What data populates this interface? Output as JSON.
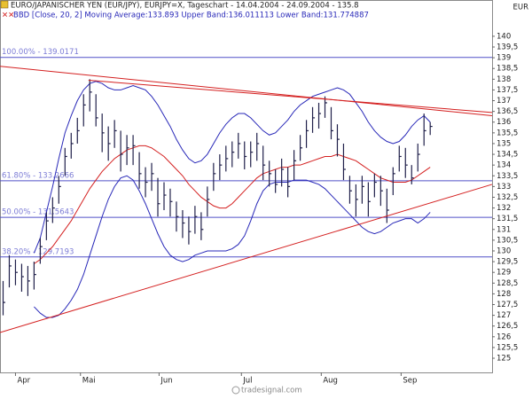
{
  "chart_data": {
    "type": "ohlc",
    "title": "EURO/JAPANISCHER YEN (EUR/JPY), EURJPY=X, Tageschart - 14.04.2004 - 24.09.2004 - 135.8",
    "subtitle": "BBD [Close, 20, 2] Moving Average:133.893 Upper Band:136.011113 Lower Band:131.774887",
    "currency": "EUR",
    "watermark": "tradesignal.com",
    "bar_color": "#20204a",
    "xlim": [
      -0.5,
      79
    ],
    "xticks": [
      {
        "value": 2,
        "label": "Apr"
      },
      {
        "value": 12.5,
        "label": "Mai"
      },
      {
        "value": 25.2,
        "label": "Jun"
      },
      {
        "value": 38.5,
        "label": "Jul"
      },
      {
        "value": 51.4,
        "label": "Aug"
      },
      {
        "value": 64.3,
        "label": "Sep"
      }
    ],
    "ylim": [
      124.34,
      141.69
    ],
    "yticks": [
      125,
      {
        "value": 125.5,
        "label": "125,5"
      },
      126,
      {
        "value": 126.5,
        "label": "126,5"
      },
      127,
      {
        "value": 127.5,
        "label": "127,5"
      },
      128,
      {
        "value": 128.5,
        "label": "128,5"
      },
      129,
      {
        "value": 129.5,
        "label": "129,5"
      },
      130,
      {
        "value": 130.5,
        "label": "130,5"
      },
      131,
      {
        "value": 131.5,
        "label": "131,5"
      },
      132,
      {
        "value": 132.5,
        "label": "132,5"
      },
      133,
      {
        "value": 133.5,
        "label": "133,5"
      },
      134,
      {
        "value": 134.5,
        "label": "134,5"
      },
      135,
      {
        "value": 135.5,
        "label": "135,5"
      },
      136,
      {
        "value": 136.5,
        "label": "136,5"
      },
      137,
      {
        "value": 137.5,
        "label": "137,5"
      },
      138,
      {
        "value": 138.5,
        "label": "138,5"
      },
      139,
      {
        "value": 139.5,
        "label": "139,5"
      },
      140
    ],
    "ohlc": {
      "high": [
        128.6,
        129.8,
        129.6,
        129.4,
        129.3,
        129.5,
        130.6,
        131.8,
        132.5,
        133.5,
        134.8,
        135.5,
        136.2,
        137.3,
        138.0,
        137.3,
        136.4,
        135.8,
        136.1,
        135.6,
        135.4,
        135.4,
        134.6,
        133.9,
        134.1,
        133.4,
        133.2,
        132.9,
        132.3,
        131.9,
        131.6,
        132.1,
        131.8,
        133.0,
        134.1,
        134.5,
        134.9,
        135.1,
        135.5,
        135.1,
        135.1,
        135.5,
        134.9,
        134.2,
        133.8,
        134.3,
        133.9,
        134.7,
        135.4,
        136.1,
        136.7,
        136.9,
        137.2,
        136.7,
        135.9,
        135.0,
        133.5,
        133.1,
        133.5,
        133.2,
        133.6,
        133.5,
        132.9,
        133.9,
        134.9,
        134.8,
        134.0,
        135.0,
        136.4,
        136.0
      ],
      "low": [
        127.0,
        128.3,
        128.4,
        128.1,
        127.9,
        128.2,
        129.4,
        130.5,
        131.3,
        132.2,
        133.5,
        134.3,
        135.0,
        135.8,
        136.5,
        135.8,
        134.6,
        134.2,
        134.8,
        133.7,
        134.0,
        134.0,
        132.9,
        132.5,
        132.8,
        131.6,
        131.9,
        131.6,
        130.9,
        130.6,
        130.3,
        130.8,
        130.5,
        131.6,
        132.8,
        133.3,
        133.7,
        133.9,
        134.3,
        133.8,
        133.9,
        134.2,
        133.3,
        133.0,
        132.7,
        133.0,
        132.5,
        133.3,
        134.2,
        134.8,
        135.5,
        135.7,
        136.2,
        135.2,
        134.4,
        133.3,
        132.2,
        131.6,
        132.2,
        131.6,
        132.5,
        132.1,
        131.3,
        132.6,
        133.7,
        133.4,
        133.1,
        133.7,
        134.9,
        135.4
      ],
      "close": [
        127.6,
        129.3,
        129.0,
        128.8,
        128.6,
        128.9,
        130.2,
        131.4,
        132.0,
        133.0,
        134.4,
        135.0,
        135.6,
        136.8,
        137.4,
        136.2,
        135.5,
        135.0,
        135.6,
        134.5,
        134.8,
        134.9,
        133.6,
        133.2,
        133.6,
        132.2,
        132.6,
        132.3,
        131.6,
        131.3,
        130.9,
        131.6,
        131.0,
        132.4,
        133.6,
        134.0,
        134.3,
        134.6,
        135.0,
        134.4,
        134.6,
        135.0,
        134.0,
        133.6,
        133.1,
        133.8,
        133.0,
        134.2,
        134.8,
        135.6,
        136.2,
        136.4,
        136.9,
        135.6,
        135.2,
        133.8,
        132.8,
        132.4,
        133.0,
        132.3,
        133.2,
        132.8,
        131.9,
        133.6,
        134.4,
        134.0,
        133.4,
        134.5,
        135.6,
        135.8
      ]
    },
    "series": [
      {
        "color": "#d42020",
        "values": [
          null,
          null,
          null,
          null,
          null,
          129.4,
          129.6,
          129.9,
          130.2,
          130.6,
          131.0,
          131.4,
          131.9,
          132.4,
          132.9,
          133.3,
          133.7,
          134.0,
          134.3,
          134.5,
          134.7,
          134.8,
          134.9,
          134.9,
          134.8,
          134.6,
          134.4,
          134.1,
          133.8,
          133.5,
          133.1,
          132.8,
          132.5,
          132.3,
          132.1,
          132.0,
          132.0,
          132.2,
          132.5,
          132.8,
          133.1,
          133.4,
          133.6,
          133.7,
          133.8,
          133.9,
          133.9,
          134.0,
          134.0,
          134.1,
          134.2,
          134.3,
          134.4,
          134.4,
          134.5,
          134.4,
          134.3,
          134.2,
          134.0,
          133.8,
          133.6,
          133.4,
          133.3,
          133.2,
          133.2,
          133.2,
          133.3,
          133.5,
          133.7,
          133.9
        ]
      },
      {
        "color": "#2828b8",
        "values": [
          null,
          null,
          null,
          null,
          null,
          129.9,
          130.6,
          131.8,
          133.0,
          134.3,
          135.5,
          136.3,
          137.0,
          137.5,
          137.8,
          137.9,
          137.8,
          137.6,
          137.5,
          137.5,
          137.6,
          137.7,
          137.6,
          137.5,
          137.2,
          136.8,
          136.3,
          135.8,
          135.2,
          134.7,
          134.3,
          134.1,
          134.2,
          134.5,
          135.0,
          135.5,
          135.9,
          136.2,
          136.4,
          136.4,
          136.2,
          135.9,
          135.6,
          135.4,
          135.5,
          135.8,
          136.1,
          136.5,
          136.8,
          137.0,
          137.2,
          137.3,
          137.4,
          137.5,
          137.6,
          137.5,
          137.3,
          136.9,
          136.5,
          136.0,
          135.6,
          135.3,
          135.1,
          135.0,
          135.1,
          135.4,
          135.8,
          136.1,
          136.3,
          136.0
        ]
      },
      {
        "color": "#2828b8",
        "values": [
          null,
          null,
          null,
          null,
          null,
          127.4,
          127.1,
          126.9,
          126.9,
          127.0,
          127.3,
          127.7,
          128.2,
          128.9,
          129.8,
          130.7,
          131.6,
          132.4,
          133.0,
          133.4,
          133.5,
          133.3,
          132.8,
          132.2,
          131.5,
          130.8,
          130.2,
          129.8,
          129.6,
          129.5,
          129.6,
          129.8,
          129.9,
          130.0,
          130.0,
          130.0,
          130.0,
          130.1,
          130.3,
          130.7,
          131.4,
          132.2,
          132.8,
          133.1,
          133.2,
          133.2,
          133.2,
          133.3,
          133.3,
          133.3,
          133.2,
          133.1,
          132.9,
          132.6,
          132.3,
          132.0,
          131.7,
          131.4,
          131.1,
          130.9,
          130.8,
          130.9,
          131.1,
          131.3,
          131.4,
          131.5,
          131.5,
          131.3,
          131.5,
          131.8
        ]
      }
    ],
    "fib_color": "#5050c8",
    "fib_levels": [
      {
        "value": 139.0171,
        "label": "100.00% - 139.0171"
      },
      {
        "value": 133.2666,
        "label": "61.80% - 133.2666"
      },
      {
        "value": 131.5643,
        "label": "50.00% - 131.5643"
      },
      {
        "value": 129.7193,
        "label": "38.20% - 129.7193"
      }
    ],
    "trendlines": [
      {
        "color": "#d42020",
        "x": [
          -0.5,
          79
        ],
        "y": [
          138.6,
          136.3
        ]
      },
      {
        "color": "#d42020",
        "x": [
          13.8,
          79
        ],
        "y": [
          137.95,
          136.45
        ]
      },
      {
        "color": "#d42020",
        "x": [
          -0.5,
          79
        ],
        "y": [
          126.2,
          133.1
        ]
      }
    ]
  }
}
